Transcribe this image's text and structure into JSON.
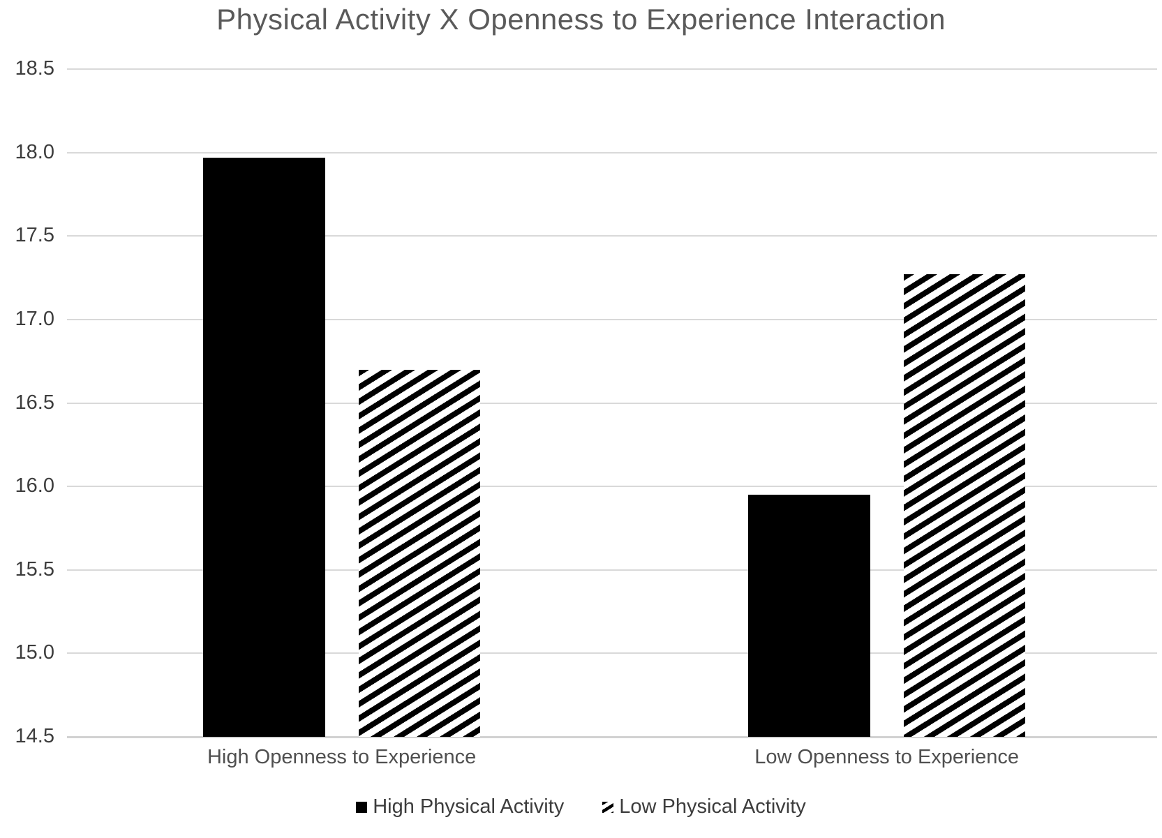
{
  "title": "Physical Activity X Openness to Experience Interaction",
  "chart_data": {
    "type": "bar",
    "title": "Physical Activity X Openness to Experience Interaction",
    "categories": [
      "High Openness to Experience",
      "Low Openness to Experience"
    ],
    "series": [
      {
        "name": "High Physical Activity",
        "pattern": "solid",
        "color": "#000000",
        "values": [
          17.97,
          15.95
        ]
      },
      {
        "name": "Low Physical Activity",
        "pattern": "diagonal-hatch",
        "color": "#000000",
        "values": [
          16.7,
          17.27
        ]
      }
    ],
    "y_ticks": [
      "18.5",
      "18.0",
      "17.5",
      "17.0",
      "16.5",
      "16.0",
      "15.5",
      "15.0",
      "14.5"
    ],
    "ylim": [
      14.5,
      18.5
    ],
    "xlabel": "",
    "ylabel": "",
    "grid": true,
    "legend_position": "bottom"
  },
  "colors": {
    "background": "#ffffff",
    "bar_fill": "#000000",
    "gridline": "#d9d9d9",
    "axis_line": "#d2d2d2",
    "title_text": "#5a5a5a",
    "tick_text": "#3d3d3d",
    "category_text": "#4f4f4f",
    "legend_text": "#3d3d3d"
  }
}
